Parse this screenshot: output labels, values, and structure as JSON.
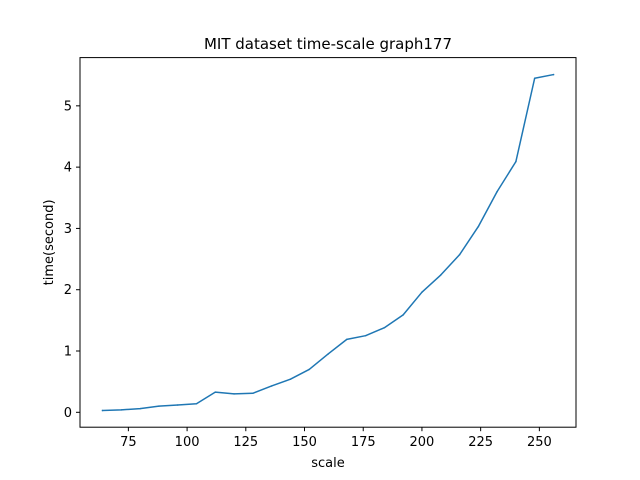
{
  "chart_data": {
    "type": "line",
    "title": "MIT dataset time-scale graph177",
    "xlabel": "scale",
    "ylabel": "time(second)",
    "xlim": [
      54.4,
      265.6
    ],
    "ylim": [
      -0.243,
      5.787
    ],
    "xticks": [
      75,
      100,
      125,
      150,
      175,
      200,
      225,
      250
    ],
    "yticks": [
      0,
      1,
      2,
      3,
      4,
      5
    ],
    "grid": false,
    "series": [
      {
        "color": "#1f77b4",
        "x": [
          64,
          72,
          80,
          88,
          96,
          104,
          112,
          120,
          128,
          136,
          144,
          152,
          160,
          168,
          176,
          184,
          192,
          200,
          208,
          216,
          224,
          232,
          240,
          248,
          256
        ],
        "y": [
          0.03,
          0.04,
          0.06,
          0.1,
          0.12,
          0.14,
          0.33,
          0.3,
          0.31,
          0.43,
          0.54,
          0.7,
          0.95,
          1.19,
          1.25,
          1.38,
          1.59,
          1.96,
          2.24,
          2.57,
          3.03,
          3.6,
          4.09,
          5.45,
          5.51
        ]
      }
    ]
  }
}
